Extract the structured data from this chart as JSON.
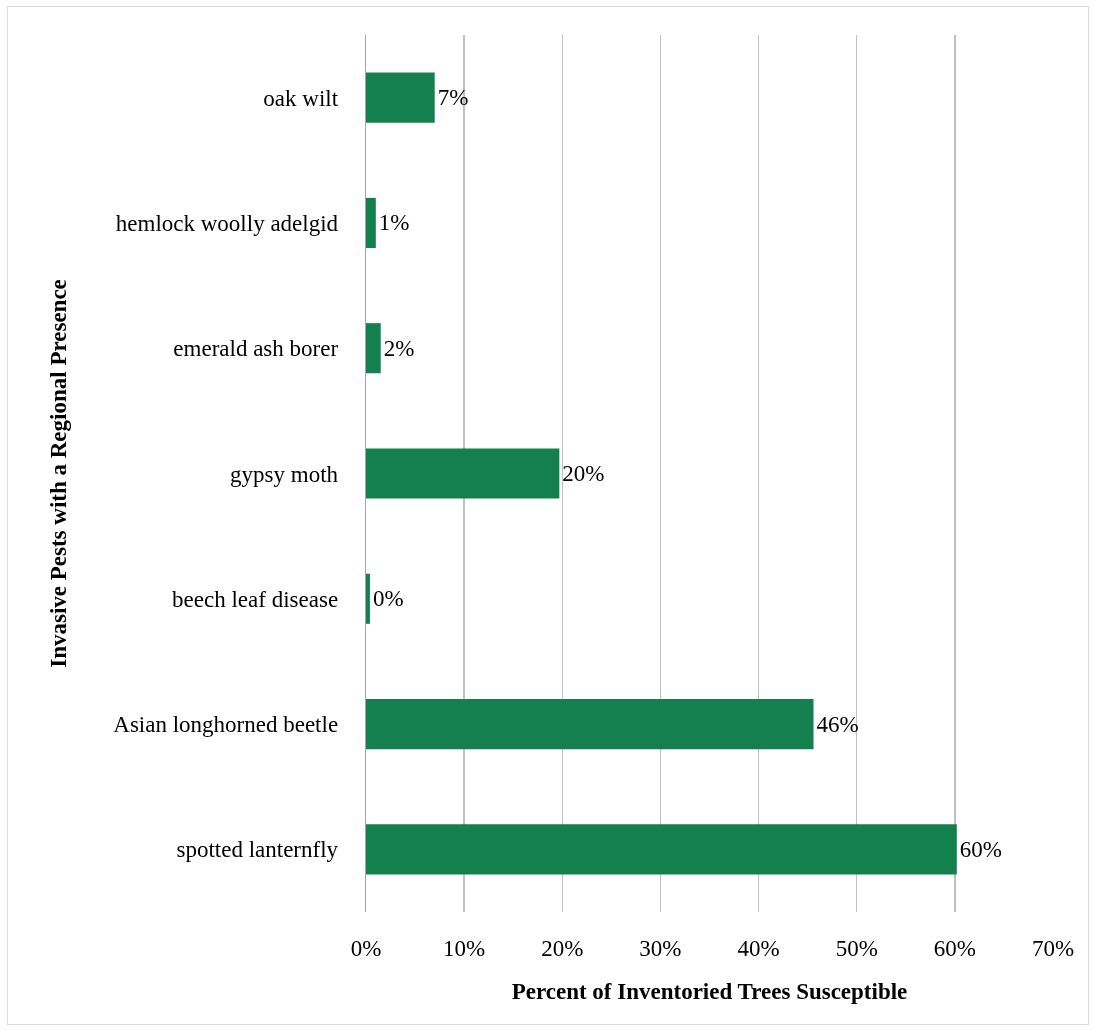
{
  "chart_data": {
    "type": "bar",
    "orientation": "horizontal",
    "categories": [
      "oak wilt",
      "hemlock woolly adelgid",
      "emerald ash borer",
      "gypsy moth",
      "beech leaf disease",
      "Asian longhorned beetle",
      "spotted lanternfly"
    ],
    "values": [
      7,
      1,
      1.5,
      19.7,
      0.4,
      45.6,
      60.2
    ],
    "value_labels": [
      "7%",
      "1%",
      "2%",
      "20%",
      "0%",
      "46%",
      "60%"
    ],
    "color": "#13804d",
    "xlabel": "Percent of Inventoried Trees Susceptible",
    "ylabel": "Invasive Pests with a Regional Presence",
    "xlim": [
      0,
      70
    ],
    "xticks": [
      {
        "value": 0,
        "label": "0%"
      },
      {
        "value": 10,
        "label": "10%"
      },
      {
        "value": 20,
        "label": "20%"
      },
      {
        "value": 30,
        "label": "30%"
      },
      {
        "value": 40,
        "label": "40%"
      },
      {
        "value": 50,
        "label": "50%"
      },
      {
        "value": 60,
        "label": "60%"
      },
      {
        "value": 70,
        "label": "70%"
      }
    ],
    "grid": "x"
  }
}
